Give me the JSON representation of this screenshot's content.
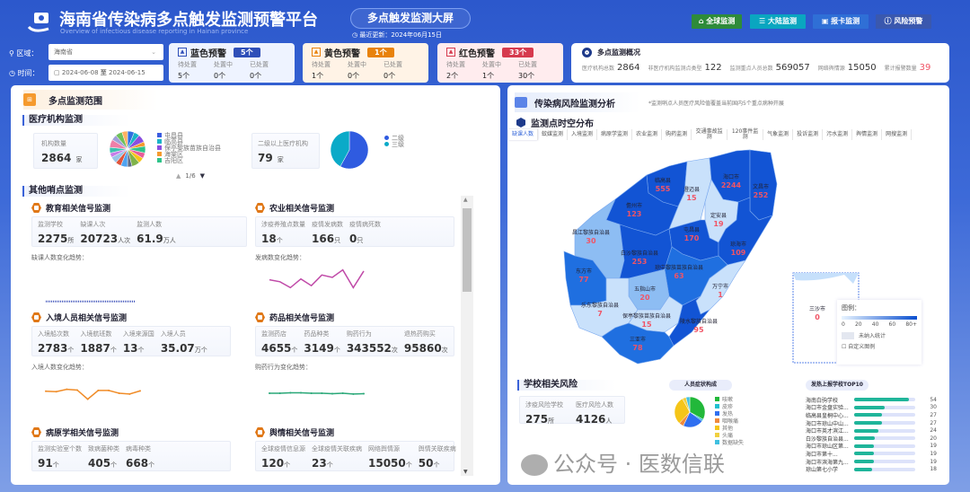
{
  "header": {
    "title": "海南省传染病多点触发监测预警平台",
    "subtitle": "Overview of infectious disease reporting in Hainan province",
    "screen_label": "多点触发监测大屏",
    "update_label": "最近更新：2024年06月15日",
    "nav": [
      {
        "label": "全球监测",
        "icon": "home-icon",
        "color": "#2e8b3a"
      },
      {
        "label": "大陆监测",
        "icon": "bars-icon",
        "color": "#0aa6c0"
      },
      {
        "label": "报卡监测",
        "icon": "clipboard-icon",
        "color": "#2f6fd6"
      },
      {
        "label": "风险预警",
        "icon": "alert-circle-icon",
        "color": "#3a58ae"
      }
    ]
  },
  "filters": {
    "region_label": "区域：",
    "region_value": "海南省",
    "time_label": "时间：",
    "date_from": "2024-06-08",
    "date_sep": "至",
    "date_to": "2024-06-15"
  },
  "alerts": [
    {
      "title": "蓝色预警",
      "count": "5个",
      "color": "#2f4fb8",
      "bg": "#eef3ff",
      "cols": [
        "待处置",
        "处置中",
        "已处置"
      ],
      "vals": [
        "5个",
        "0个",
        "0个"
      ]
    },
    {
      "title": "黄色预警",
      "count": "1个",
      "color": "#e8820c",
      "bg": "#fff3e6",
      "cols": [
        "待处置",
        "处置中",
        "已处置"
      ],
      "vals": [
        "1个",
        "0个",
        "0个"
      ]
    },
    {
      "title": "红色预警",
      "count": "33个",
      "color": "#d63a4e",
      "bg": "#ffecee",
      "cols": [
        "待处置",
        "处置中",
        "已处置"
      ],
      "vals": [
        "2个",
        "1个",
        "30个"
      ]
    }
  ],
  "overview": {
    "title": "多点监测概况",
    "items": [
      {
        "label": "医疗机构总数",
        "value": "2864"
      },
      {
        "label": "非医疗机构监测点类型",
        "value": "122"
      },
      {
        "label": "监测重点人员总数",
        "value": "569057"
      },
      {
        "label": "网络舆情源",
        "value": "15050"
      },
      {
        "label": "累计报警数量",
        "value": "39",
        "color": "#f05466"
      }
    ]
  },
  "left": {
    "title": "多点监测范围",
    "medical": {
      "title": "医疗机构监测",
      "count_label": "机构数量",
      "count": "2864",
      "count_unit": "家",
      "pie_legend": [
        {
          "name": "屯昌县",
          "color": "#3b5ce0"
        },
        {
          "name": "临高县",
          "color": "#19b4c8"
        },
        {
          "name": "保亭黎族苗族自治县",
          "color": "#8a4fe0"
        },
        {
          "name": "海棠区",
          "color": "#f59a2e"
        },
        {
          "name": "吉阳区",
          "color": "#2fc48a"
        }
      ],
      "pie_colors": [
        "#2f6fe0",
        "#19b4c8",
        "#8a4fe0",
        "#f59a2e",
        "#2fc48a",
        "#e85d9a",
        "#f5c518",
        "#7fb34a",
        "#5b6b8a",
        "#4fa3f0",
        "#e0543b",
        "#9bc4e8",
        "#c77ce8",
        "#3cc0b0",
        "#ef7fa8",
        "#a0a0d8",
        "#6ec05a",
        "#ffb060"
      ],
      "pager": "1/6",
      "level_label": "二级以上医疗机构",
      "level_count": "79",
      "level_unit": "家",
      "level_pie": [
        {
          "name": "二级",
          "value": 58,
          "color": "#2f5be0"
        },
        {
          "name": "三级",
          "value": 42,
          "color": "#0aaac8"
        }
      ]
    },
    "other_title": "其他哨点监测",
    "cards": [
      {
        "title": "教育相关信号监测",
        "stats": [
          {
            "l": "监测学校",
            "n": "2275",
            "u": "所"
          },
          {
            "l": "缺课人次",
            "n": "20723",
            "u": "人次"
          },
          {
            "l": "监测人数",
            "n": "61.9",
            "u": "万人"
          }
        ],
        "trend_label": "缺课人数变化趋势：",
        "trend": [
          5,
          5,
          5,
          5,
          5,
          5,
          5,
          5,
          5,
          5,
          5,
          5,
          5,
          5,
          5,
          5,
          5,
          5,
          5,
          5,
          5,
          5,
          5,
          5,
          5,
          5,
          5,
          5,
          5,
          5,
          5,
          5,
          5,
          5,
          5
        ],
        "trend_color": "#3a4fb8"
      },
      {
        "title": "农业相关信号监测",
        "stats": [
          {
            "l": "涉疫养殖点数量",
            "n": "18",
            "u": "个"
          },
          {
            "l": "疫情发病数",
            "n": "166",
            "u": "只"
          },
          {
            "l": "疫情病死数",
            "n": "0",
            "u": "只"
          }
        ],
        "trend_label": "发病数变化趋势：",
        "trend": [
          60,
          55,
          40,
          62,
          45,
          72,
          66,
          85,
          40,
          82
        ],
        "trend_color": "#c04aa8"
      },
      {
        "title": "入境人员相关信号监测",
        "stats": [
          {
            "l": "入境船次数",
            "n": "2783",
            "u": "个"
          },
          {
            "l": "入境航班数",
            "n": "1887",
            "u": "个"
          },
          {
            "l": "入境来源国",
            "n": "13",
            "u": "个"
          },
          {
            "l": "入境人员",
            "n": "35.07",
            "u": "万个"
          }
        ],
        "trend_label": "入境人数变化趋势：",
        "trend": [
          55,
          54,
          60,
          58,
          35,
          57,
          57,
          50,
          48,
          56
        ],
        "trend_color": "#f08c28"
      },
      {
        "title": "药品相关信号监测",
        "stats": [
          {
            "l": "监测药店",
            "n": "4655",
            "u": "个"
          },
          {
            "l": "药品种类",
            "n": "3149",
            "u": "个"
          },
          {
            "l": "购药行为",
            "n": "343552",
            "u": "次"
          },
          {
            "l": "退热药购买",
            "n": "95860",
            "u": "次"
          }
        ],
        "trend_label": "购药行为变化趋势：",
        "trend": [
          50,
          50,
          51,
          51,
          50,
          50,
          49,
          50,
          48,
          49
        ],
        "trend_color": "#2aa878"
      },
      {
        "title": "病原学相关信号监测",
        "stats": [
          {
            "l": "监测实验室个数",
            "n": "91",
            "u": "个"
          },
          {
            "l": "致病菌种类",
            "n": "405",
            "u": "个"
          },
          {
            "l": "病毒种类",
            "n": "668",
            "u": "个"
          }
        ]
      },
      {
        "title": "舆情相关信号监测",
        "stats": [
          {
            "l": "全球疫情信息源",
            "n": "120",
            "u": "个"
          },
          {
            "l": "全球疫情关联疾病",
            "n": "23",
            "u": "个"
          },
          {
            "l": "网络舆情源",
            "n": "15050",
            "u": "个"
          },
          {
            "l": "舆情关联疾病",
            "n": "50",
            "u": "个"
          }
        ]
      }
    ]
  },
  "right": {
    "title": "传染病风险监测分析",
    "note": "*监测哨点人员医疗风险值覆盖当前国内5个重点病种开展",
    "map_title": "监测点时空分布",
    "tabs": [
      "缺课人数",
      "蚊媒监测",
      "入境监测",
      "病原学监测",
      "农业监测",
      "购药监测",
      "交通事故监测",
      "120事件监测",
      "气象监测",
      "投诉监测",
      "污水监测",
      "舆情监测",
      "网搜监测"
    ],
    "regions": [
      {
        "name": "临高县",
        "value": 555
      },
      {
        "name": "澄迈县",
        "value": 15
      },
      {
        "name": "海口市",
        "value": 2244
      },
      {
        "name": "文昌市",
        "value": 252
      },
      {
        "name": "儋州市",
        "value": 123
      },
      {
        "name": "定安县",
        "value": 19
      },
      {
        "name": "屯昌县",
        "value": 170
      },
      {
        "name": "琼海市",
        "value": 109
      },
      {
        "name": "昌江黎族自治县",
        "value": 30
      },
      {
        "name": "白沙黎族自治县",
        "value": 253
      },
      {
        "name": "东方市",
        "value": 77
      },
      {
        "name": "琼中黎族苗族自治县",
        "value": 63
      },
      {
        "name": "万宁市",
        "value": 1
      },
      {
        "name": "五指山市",
        "value": 20
      },
      {
        "name": "乐东黎族自治县",
        "value": 7
      },
      {
        "name": "保亭黎族苗族自治县",
        "value": 15
      },
      {
        "name": "陵水黎族自治县",
        "value": 95
      },
      {
        "name": "三亚市",
        "value": 78
      },
      {
        "name": "三沙市",
        "value": 0
      }
    ],
    "legend": {
      "title": "图例：",
      "ticks": [
        "0",
        "20",
        "40",
        "60",
        "80+"
      ],
      "na_label": "未纳入统计",
      "custom_label": "自定义图例"
    },
    "school": {
      "title": "学校相关风险",
      "stats": [
        {
          "l": "涉疫风险学校",
          "n": "275",
          "u": "所"
        },
        {
          "l": "医疗风险人数",
          "n": "4126",
          "u": "人"
        }
      ]
    },
    "symptoms": {
      "title": "人员症状构成",
      "items": [
        {
          "name": "咳嗽",
          "value": 33,
          "color": "#22b83a"
        },
        {
          "name": "皮疹",
          "value": 2,
          "color": "#22c0d0"
        },
        {
          "name": "发热",
          "value": 22,
          "color": "#2f6ff0"
        },
        {
          "name": "咽喉痛",
          "value": 5,
          "color": "#f08a3c"
        },
        {
          "name": "其他",
          "value": 30,
          "color": "#f5c518"
        },
        {
          "name": "头痛",
          "value": 4,
          "color": "#f0d040"
        },
        {
          "name": "数据缺失",
          "value": 4,
          "color": "#40c0e0"
        }
      ]
    },
    "top10": {
      "title": "发热上报学校TOP10",
      "rows": [
        {
          "name": "海南白驹学校",
          "value": 54
        },
        {
          "name": "海口市金盘实验...",
          "value": 30
        },
        {
          "name": "临高县皇桐中心...",
          "value": 27
        },
        {
          "name": "海口市琼山中山...",
          "value": 27
        },
        {
          "name": "海口市英才滨江...",
          "value": 24
        },
        {
          "name": "白沙黎族自治县...",
          "value": 20
        },
        {
          "name": "海口市琼山区第...",
          "value": 19
        },
        {
          "name": "海口市第十...",
          "value": 19
        },
        {
          "name": "海口市滨海第九...",
          "value": 19
        },
        {
          "name": "琼山第七小学",
          "value": 18
        }
      ]
    }
  },
  "watermark": "公众号 · 医数信联"
}
